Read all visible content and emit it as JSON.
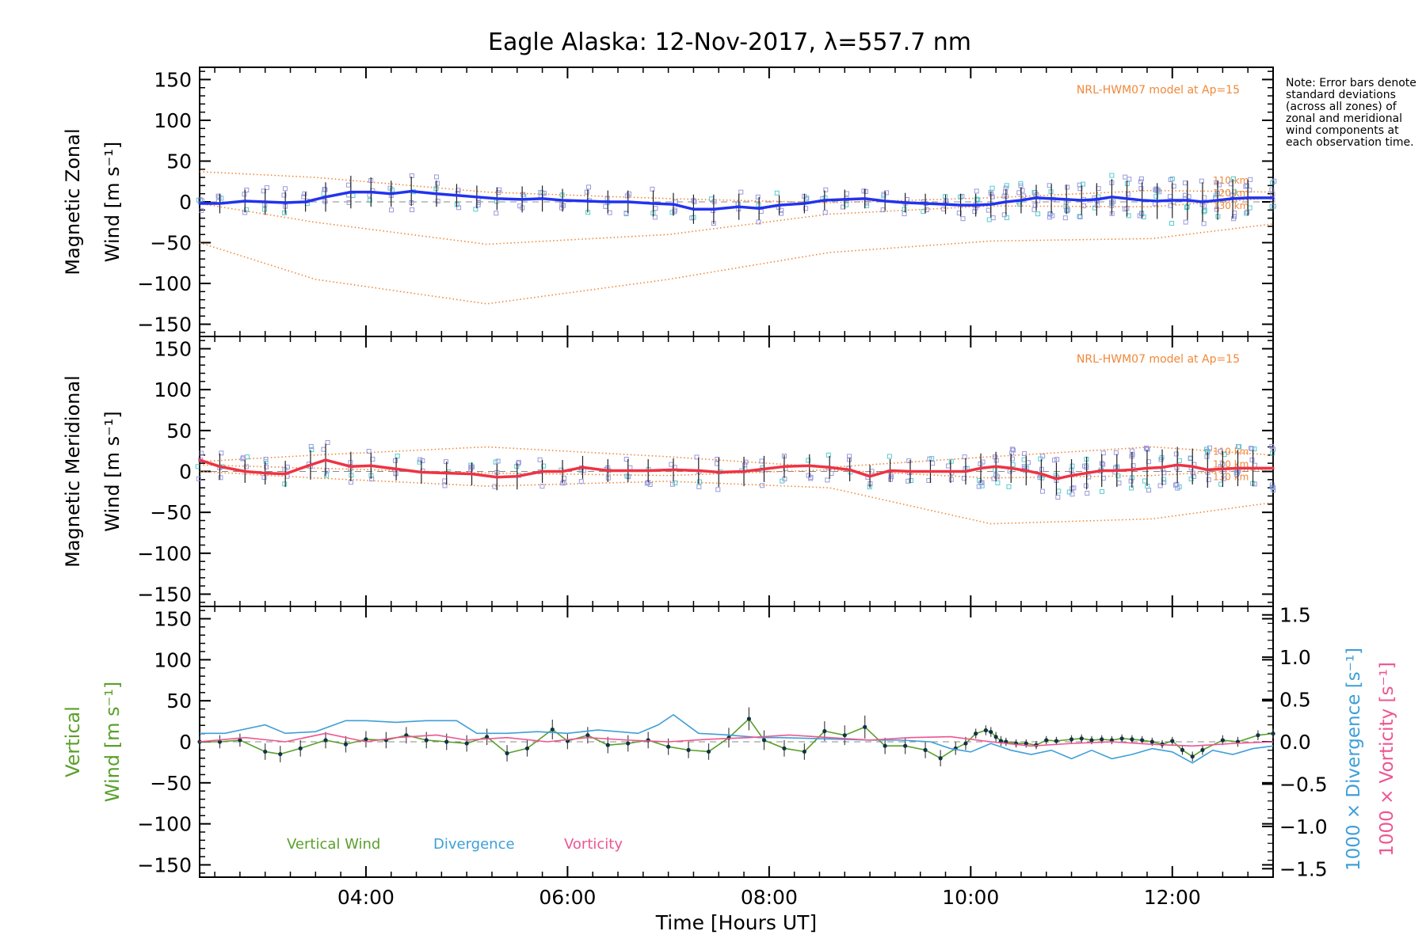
{
  "title": "Eagle Alaska: 12-Nov-2017, λ=557.7 nm",
  "note": "Note: Error bars denote standard deviations (across all zones) of zonal and meridional wind components at each observation time.",
  "colors": {
    "zonal": "#2233ee",
    "meridional": "#ee3344",
    "model": "#f0883a",
    "zone_points": "#9999dd",
    "zone_points_alt": "#55cccc",
    "vertical": "#5aa02c",
    "divergence": "#3e9fd8",
    "vorticity": "#ee5590",
    "error_bar": "#222222"
  },
  "chart_data": [
    {
      "type": "line",
      "name": "zonal",
      "ylabel_line1": "Magnetic Zonal",
      "ylabel_line2": "Wind [m s⁻¹]",
      "ylim": [
        -165,
        165
      ],
      "yticks": [
        -150,
        -100,
        -50,
        0,
        50,
        100,
        150
      ],
      "xlim": [
        2.35,
        13.0
      ],
      "model_label": "NRL-HWM07 model at Ap=15",
      "model_altitudes": [
        "110 km",
        "120 km",
        "130 km"
      ],
      "x": [
        2.35,
        2.55,
        2.8,
        3.0,
        3.2,
        3.4,
        3.6,
        3.85,
        4.05,
        4.25,
        4.45,
        4.7,
        4.9,
        5.1,
        5.3,
        5.55,
        5.75,
        5.95,
        6.2,
        6.4,
        6.6,
        6.85,
        7.05,
        7.25,
        7.45,
        7.7,
        7.9,
        8.1,
        8.35,
        8.55,
        8.75,
        8.95,
        9.15,
        9.35,
        9.55,
        9.75,
        9.9,
        10.05,
        10.2,
        10.35,
        10.5,
        10.65,
        10.8,
        10.95,
        11.1,
        11.25,
        11.4,
        11.55,
        11.7,
        11.85,
        12.0,
        12.15,
        12.3,
        12.45,
        12.6,
        12.75,
        13.0
      ],
      "y": [
        -2,
        -2,
        1,
        0,
        -1,
        0,
        6,
        12,
        12,
        10,
        13,
        10,
        8,
        6,
        4,
        3,
        4,
        2,
        1,
        0,
        0,
        -2,
        -3,
        -9,
        -9,
        -6,
        -8,
        -4,
        -2,
        2,
        3,
        4,
        1,
        -1,
        -2,
        -3,
        -4,
        -4,
        -3,
        0,
        2,
        5,
        4,
        3,
        2,
        3,
        6,
        4,
        2,
        1,
        2,
        2,
        0,
        2,
        4,
        5,
        5
      ],
      "error": [
        10,
        12,
        14,
        16,
        14,
        12,
        18,
        20,
        18,
        16,
        18,
        16,
        14,
        14,
        14,
        16,
        16,
        14,
        14,
        14,
        14,
        16,
        14,
        18,
        18,
        16,
        14,
        12,
        12,
        12,
        12,
        12,
        12,
        12,
        12,
        12,
        14,
        14,
        16,
        16,
        16,
        16,
        18,
        18,
        18,
        20,
        22,
        22,
        22,
        22,
        22,
        24,
        24,
        24,
        24,
        22,
        18
      ],
      "model_series": [
        {
          "name": "110 km",
          "x": [
            2.35,
            3.5,
            5.2,
            7.0,
            8.6,
            10.2,
            11.8,
            13.0
          ],
          "y": [
            37,
            30,
            12,
            4,
            -1,
            5,
            14,
            12
          ]
        },
        {
          "name": "120 km",
          "x": [
            2.35,
            3.5,
            5.2,
            7.0,
            8.6,
            10.2,
            11.8,
            13.0
          ],
          "y": [
            -2,
            -25,
            -52,
            -40,
            -15,
            -5,
            -6,
            5
          ]
        },
        {
          "name": "130 km",
          "x": [
            2.35,
            3.5,
            5.2,
            7.0,
            8.6,
            10.2,
            11.8,
            13.0
          ],
          "y": [
            -50,
            -95,
            -125,
            -95,
            -62,
            -48,
            -45,
            -27
          ]
        }
      ]
    },
    {
      "type": "line",
      "name": "meridional",
      "ylabel_line1": "Magnetic Meridional",
      "ylabel_line2": "Wind [m s⁻¹]",
      "ylim": [
        -165,
        165
      ],
      "yticks": [
        -150,
        -100,
        -50,
        0,
        50,
        100,
        150
      ],
      "xlim": [
        2.35,
        13.0
      ],
      "model_label": "NRL-HWM07 model at Ap=15",
      "model_altitudes": [
        "110 km",
        "120 km",
        "130 km"
      ],
      "x": [
        2.35,
        2.55,
        2.8,
        3.0,
        3.2,
        3.45,
        3.6,
        3.85,
        4.05,
        4.3,
        4.55,
        4.8,
        5.05,
        5.3,
        5.5,
        5.75,
        5.95,
        6.15,
        6.4,
        6.6,
        6.8,
        7.05,
        7.3,
        7.5,
        7.75,
        7.95,
        8.15,
        8.4,
        8.6,
        8.8,
        9.0,
        9.2,
        9.4,
        9.6,
        9.8,
        9.95,
        10.1,
        10.25,
        10.4,
        10.55,
        10.7,
        10.85,
        11.0,
        11.15,
        11.3,
        11.45,
        11.6,
        11.75,
        11.9,
        12.05,
        12.2,
        12.35,
        12.5,
        12.65,
        12.8,
        13.0
      ],
      "y": [
        14,
        6,
        0,
        -2,
        -3,
        8,
        14,
        6,
        7,
        3,
        -1,
        -2,
        -3,
        -7,
        -6,
        0,
        0,
        5,
        1,
        1,
        1,
        2,
        1,
        -1,
        0,
        3,
        6,
        7,
        5,
        2,
        -6,
        1,
        0,
        0,
        0,
        0,
        4,
        6,
        4,
        1,
        -3,
        -9,
        -5,
        -2,
        1,
        1,
        2,
        4,
        5,
        8,
        6,
        2,
        3,
        4,
        4,
        4
      ],
      "error": [
        18,
        16,
        14,
        14,
        16,
        18,
        20,
        18,
        16,
        14,
        14,
        14,
        14,
        16,
        16,
        14,
        14,
        14,
        14,
        14,
        14,
        14,
        16,
        18,
        18,
        16,
        14,
        14,
        14,
        14,
        14,
        14,
        14,
        14,
        14,
        16,
        18,
        18,
        18,
        18,
        18,
        20,
        20,
        20,
        20,
        20,
        22,
        22,
        22,
        22,
        22,
        22,
        22,
        22,
        22,
        22
      ],
      "model_series": [
        {
          "name": "110 km",
          "x": [
            2.35,
            3.5,
            5.2,
            7.0,
            8.6,
            10.2,
            11.8,
            13.0
          ],
          "y": [
            12,
            20,
            30,
            18,
            5,
            18,
            30,
            20
          ]
        },
        {
          "name": "120 km",
          "x": [
            2.35,
            3.5,
            5.2,
            7.0,
            8.6,
            10.2,
            11.8,
            13.0
          ],
          "y": [
            8,
            4,
            -2,
            -5,
            2,
            -8,
            -5,
            3
          ]
        },
        {
          "name": "130 km",
          "x": [
            2.35,
            3.5,
            5.2,
            7.0,
            8.6,
            10.2,
            11.8,
            13.0
          ],
          "y": [
            0,
            -8,
            -18,
            -12,
            -20,
            -64,
            -58,
            -38
          ]
        }
      ]
    },
    {
      "type": "line",
      "name": "vertical",
      "ylabel_line1": "Vertical",
      "ylabel_line2": "Wind [m s⁻¹]",
      "ylim": [
        -165,
        165
      ],
      "yticks": [
        -150,
        -100,
        -50,
        0,
        50,
        100,
        150
      ],
      "xlim": [
        2.35,
        13.0
      ],
      "right_ylim": [
        -1.6,
        1.6
      ],
      "right_yticks": [
        "-1.5",
        "-1.0",
        "-0.5",
        "0.0",
        "0.5",
        "1.0",
        "1.5"
      ],
      "right_ylabel_divergence": "1000 × Divergence [s⁻¹]",
      "right_ylabel_vorticity": "1000 × Vorticity [s⁻¹]",
      "legend": [
        "Vertical Wind",
        "Divergence",
        "Vorticity"
      ],
      "xticks": [
        "04:00",
        "06:00",
        "08:00",
        "10:00",
        "12:00"
      ],
      "xtick_values": [
        4,
        6,
        8,
        10,
        12
      ],
      "xlabel": "Time [Hours UT]",
      "series": [
        {
          "name": "Vertical Wind",
          "axis": "left",
          "x": [
            2.35,
            2.55,
            2.75,
            3.0,
            3.15,
            3.35,
            3.6,
            3.8,
            4.0,
            4.2,
            4.4,
            4.6,
            4.8,
            5.0,
            5.2,
            5.4,
            5.6,
            5.85,
            6.0,
            6.2,
            6.4,
            6.6,
            6.8,
            7.0,
            7.2,
            7.4,
            7.6,
            7.8,
            7.95,
            8.15,
            8.35,
            8.55,
            8.75,
            8.95,
            9.15,
            9.35,
            9.55,
            9.7,
            9.85,
            9.95,
            10.05,
            10.15,
            10.2,
            10.25,
            10.3,
            10.35,
            10.45,
            10.55,
            10.65,
            10.75,
            10.85,
            11.0,
            11.1,
            11.2,
            11.3,
            11.4,
            11.5,
            11.6,
            11.7,
            11.8,
            11.9,
            12.0,
            12.1,
            12.2,
            12.3,
            12.5,
            12.65,
            12.85,
            13.0
          ],
          "y": [
            0,
            0,
            2,
            -12,
            -15,
            -8,
            2,
            -3,
            3,
            2,
            8,
            2,
            0,
            -2,
            6,
            -14,
            -8,
            15,
            1,
            8,
            -4,
            -2,
            2,
            -6,
            -10,
            -12,
            5,
            28,
            2,
            -8,
            -12,
            13,
            8,
            18,
            -5,
            -5,
            -10,
            -20,
            -8,
            -2,
            10,
            14,
            12,
            6,
            1,
            0,
            -2,
            -2,
            -4,
            2,
            1,
            3,
            4,
            2,
            3,
            2,
            4,
            3,
            2,
            0,
            -3,
            1,
            -10,
            -18,
            -10,
            2,
            0,
            8,
            10
          ],
          "error": [
            8,
            8,
            8,
            10,
            10,
            10,
            10,
            10,
            10,
            10,
            10,
            10,
            10,
            10,
            10,
            10,
            10,
            12,
            10,
            10,
            10,
            10,
            10,
            10,
            10,
            10,
            12,
            14,
            12,
            10,
            10,
            12,
            12,
            14,
            10,
            10,
            10,
            10,
            8,
            8,
            6,
            6,
            6,
            6,
            6,
            5,
            5,
            5,
            5,
            5,
            5,
            5,
            5,
            5,
            5,
            5,
            5,
            5,
            5,
            5,
            5,
            5,
            6,
            6,
            6,
            6,
            6,
            6,
            6
          ]
        },
        {
          "name": "Divergence",
          "axis": "right",
          "x": [
            2.35,
            2.6,
            3.0,
            3.2,
            3.5,
            3.8,
            4.0,
            4.3,
            4.6,
            4.9,
            5.1,
            5.4,
            5.7,
            6.0,
            6.3,
            6.7,
            6.9,
            7.05,
            7.3,
            7.6,
            7.9,
            8.1,
            8.4,
            8.7,
            9.0,
            9.3,
            9.6,
            9.8,
            10.0,
            10.2,
            10.4,
            10.6,
            10.8,
            11.0,
            11.2,
            11.4,
            11.6,
            11.8,
            12.0,
            12.2,
            12.4,
            12.6,
            12.8,
            13.0
          ],
          "y": [
            0.1,
            0.1,
            0.2,
            0.1,
            0.12,
            0.25,
            0.25,
            0.23,
            0.25,
            0.25,
            0.1,
            0.1,
            0.12,
            0.1,
            0.14,
            0.1,
            0.2,
            0.32,
            0.1,
            0.08,
            0.05,
            0.05,
            0.04,
            0.03,
            0.02,
            0.02,
            0.0,
            -0.08,
            -0.12,
            -0.02,
            -0.1,
            -0.15,
            -0.1,
            -0.2,
            -0.1,
            -0.2,
            -0.15,
            -0.08,
            -0.12,
            -0.25,
            -0.1,
            -0.15,
            -0.08,
            -0.05
          ]
        },
        {
          "name": "Vorticity",
          "axis": "right",
          "x": [
            2.35,
            2.8,
            3.2,
            3.6,
            4.0,
            4.3,
            4.7,
            5.0,
            5.4,
            5.8,
            6.2,
            6.6,
            7.0,
            7.4,
            7.8,
            8.2,
            8.6,
            9.0,
            9.4,
            9.8,
            10.2,
            10.6,
            11.0,
            11.4,
            11.8,
            12.2,
            12.6,
            13.0
          ],
          "y": [
            0.0,
            0.05,
            0.0,
            0.1,
            0.0,
            0.05,
            0.08,
            0.02,
            0.05,
            0.0,
            0.05,
            0.02,
            0.0,
            0.03,
            0.05,
            0.08,
            0.05,
            0.02,
            0.05,
            0.06,
            0.0,
            -0.05,
            -0.02,
            0.0,
            -0.03,
            -0.05,
            -0.02,
            0.0
          ]
        }
      ]
    }
  ]
}
